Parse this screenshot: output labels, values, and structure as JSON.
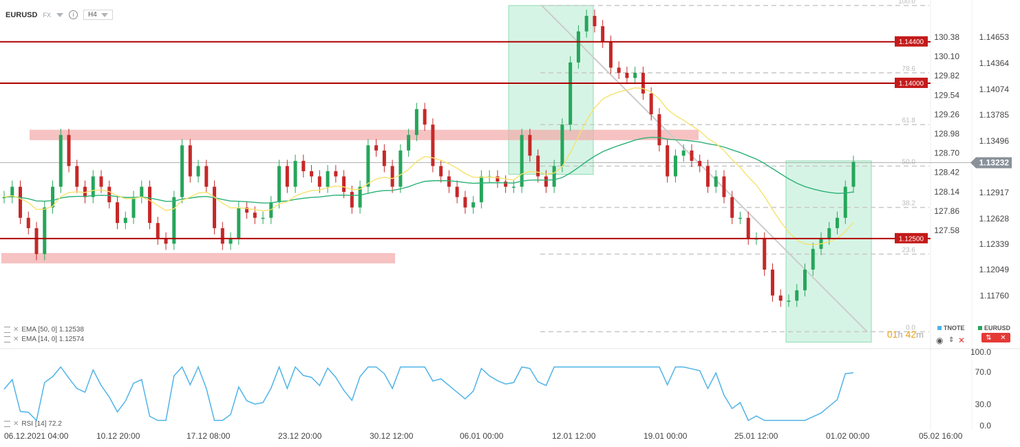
{
  "header": {
    "symbol": "EURUSD",
    "market": "FX",
    "timeframe": "H4",
    "info_icon": "info-icon"
  },
  "indicators": {
    "ema50": "EMA [50, 0] 1.12538",
    "ema14": "EMA [14, 0] 1.12574",
    "rsi": "RSI [14] 72.2"
  },
  "countdown": {
    "hours": "01",
    "h_unit": "h",
    "minutes": "42",
    "m_unit": "m"
  },
  "instruments": [
    {
      "name": "TNOTE",
      "color": "#4fb3e8"
    },
    {
      "name": "EURUSD",
      "color": "#26a65b"
    }
  ],
  "colors": {
    "up": "#26a65b",
    "down": "#c62828",
    "tnote": "#4fb3e8",
    "ema50": "#2ab075",
    "ema14": "#f5e26b",
    "level": "#b00000",
    "zone": "#f2a8a8",
    "box": "#b5ebd0",
    "fib": "#c8c8c8"
  },
  "chart_data": {
    "type": "candlestick",
    "instrument": "EURUSD",
    "timeframe": "H4",
    "x_ticks": [
      "06.12.2021 04:00",
      "10.12 20:00",
      "17.12 08:00",
      "23.12 20:00",
      "30.12 12:00",
      "06.01 00:00",
      "12.01 12:00",
      "19.01 00:00",
      "25.01 12:00",
      "01.02 00:00",
      "05.02 16:00"
    ],
    "y_axis_eurusd": [
      1.14653,
      1.14364,
      1.14074,
      1.13785,
      1.13496,
      1.12917,
      1.12628,
      1.12339,
      1.12049,
      1.1176
    ],
    "y_axis_tnote": [
      130.38,
      130.1,
      129.82,
      129.54,
      129.26,
      128.98,
      128.7,
      128.42,
      128.14,
      127.86,
      127.58
    ],
    "ylim_eurusd": [
      1.1145,
      1.1475
    ],
    "current_price": "1.13232",
    "levels": [
      {
        "label": "1.14400",
        "value": 1.144
      },
      {
        "label": "1.14000",
        "value": 1.14
      },
      {
        "label": "1.12500",
        "value": 1.125
      }
    ],
    "zones": [
      {
        "from": 1.1345,
        "to": 1.1355
      },
      {
        "from": 1.1226,
        "to": 1.1236
      }
    ],
    "fib_levels": [
      "100.0",
      "78.6",
      "61.8",
      "50.0",
      "38.2",
      "23.6",
      "0.0"
    ],
    "rsi": {
      "ticks": [
        "100.0",
        "70.0",
        "30.0",
        "0.0"
      ],
      "last": 72.2
    },
    "eurusd_series": [
      1.129,
      1.13,
      1.127,
      1.126,
      1.1235,
      1.128,
      1.13,
      1.135,
      1.132,
      1.13,
      1.129,
      1.131,
      1.13,
      1.1285,
      1.1265,
      1.127,
      1.129,
      1.13,
      1.1265,
      1.125,
      1.1245,
      1.129,
      1.134,
      1.131,
      1.132,
      1.13,
      1.126,
      1.1245,
      1.125,
      1.128,
      1.1275,
      1.127,
      1.127,
      1.1285,
      1.132,
      1.13,
      1.1325,
      1.1315,
      1.131,
      1.13,
      1.1315,
      1.131,
      1.1295,
      1.128,
      1.13,
      1.134,
      1.1335,
      1.132,
      1.13,
      1.1335,
      1.135,
      1.1375,
      1.136,
      1.132,
      1.131,
      1.13,
      1.129,
      1.128,
      1.1285,
      1.131,
      1.131,
      1.1305,
      1.13,
      1.13,
      1.135,
      1.133,
      1.131,
      1.13,
      1.132,
      1.136,
      1.142,
      1.145,
      1.1465,
      1.1455,
      1.144,
      1.1415,
      1.141,
      1.1405,
      1.141,
      1.139,
      1.137,
      1.134,
      1.131,
      1.133,
      1.1335,
      1.1325,
      1.132,
      1.13,
      1.131,
      1.129,
      1.127,
      1.127,
      1.125,
      1.125,
      1.122,
      1.1195,
      1.119,
      1.119,
      1.12,
      1.122,
      1.124,
      1.125,
      1.126,
      1.127,
      1.13,
      1.1324
    ]
  }
}
